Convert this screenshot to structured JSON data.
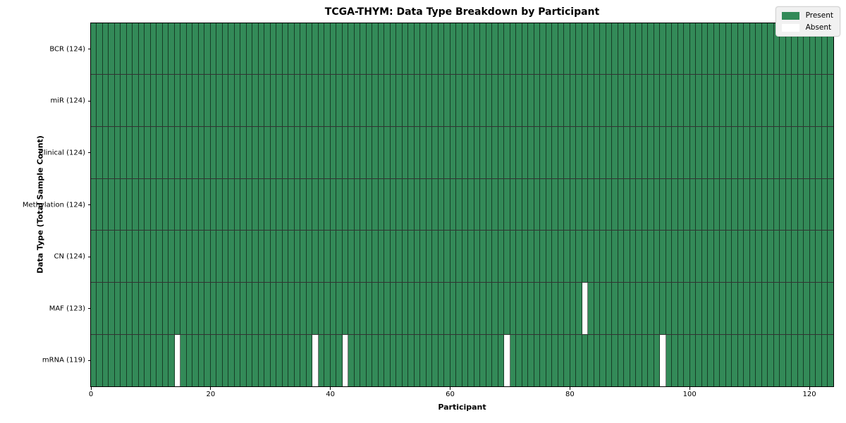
{
  "chart_data": {
    "type": "heatmap",
    "title": "TCGA-THYM: Data Type Breakdown by Participant",
    "xlabel": "Participant",
    "ylabel": "Data Type (Total Sample Count)",
    "x_ticks": [
      0,
      20,
      40,
      60,
      80,
      100,
      120
    ],
    "xlim": [
      0,
      124
    ],
    "n_participants": 124,
    "grid": true,
    "legend_position": "upper right",
    "legend_labels": {
      "present": "Present",
      "absent": "Absent"
    },
    "cell_states": {
      "present": 1,
      "absent": 0
    },
    "rows": [
      {
        "label": "BCR (124)",
        "data_type": "BCR",
        "total_samples": 124,
        "absent_participants": []
      },
      {
        "label": "miR (124)",
        "data_type": "miR",
        "total_samples": 124,
        "absent_participants": []
      },
      {
        "label": "Clinical (124)",
        "data_type": "Clinical",
        "total_samples": 124,
        "absent_participants": []
      },
      {
        "label": "Methylation (124)",
        "data_type": "Methylation",
        "total_samples": 124,
        "absent_participants": []
      },
      {
        "label": "CN (124)",
        "data_type": "CN",
        "total_samples": 124,
        "absent_participants": []
      },
      {
        "label": "MAF (123)",
        "data_type": "MAF",
        "total_samples": 123,
        "absent_participants": [
          82
        ]
      },
      {
        "label": "mRNA (119)",
        "data_type": "mRNA",
        "total_samples": 119,
        "absent_participants": [
          14,
          37,
          42,
          69,
          95
        ]
      }
    ],
    "colors": {
      "present": "#338a58",
      "absent": "#ffffff"
    }
  }
}
